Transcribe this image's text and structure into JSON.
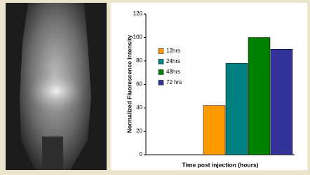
{
  "chart_data": {
    "type": "bar",
    "ylabel": "Normalized Fluorescence Intensity",
    "xlabel": "Time post injection (hours)",
    "categories": [
      null
    ],
    "series": [
      {
        "name": "12hrs",
        "color": "#ff9900",
        "values": [
          42
        ]
      },
      {
        "name": "24hrs",
        "color": "#008080",
        "values": [
          78
        ]
      },
      {
        "name": "48hrs",
        "color": "#008000",
        "values": [
          100
        ]
      },
      {
        "name": "72 hrs",
        "color": "#333399",
        "values": [
          90
        ]
      }
    ],
    "ylim": [
      0,
      120
    ],
    "yticks": [
      0,
      20,
      40,
      60,
      80,
      100,
      120
    ],
    "grid": false
  }
}
